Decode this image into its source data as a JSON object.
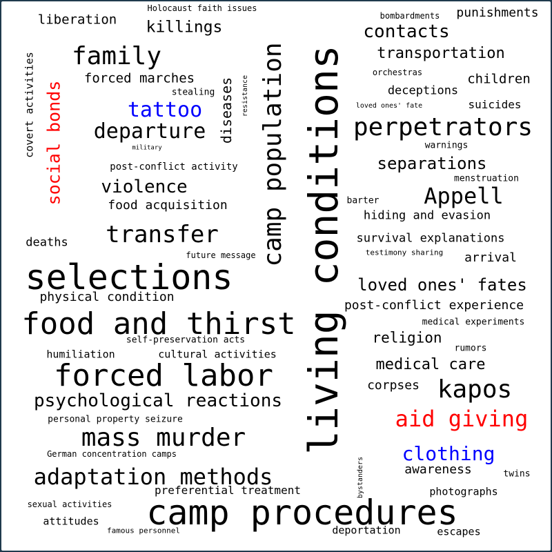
{
  "palette": {
    "default": "#000000",
    "red": "#ff0000",
    "blue": "#0000ff"
  },
  "words": [
    {
      "text": "living conditions",
      "color": "default"
    },
    {
      "text": "camp procedures",
      "color": "default"
    },
    {
      "text": "selections",
      "color": "default"
    },
    {
      "text": "food and thirst",
      "color": "default"
    },
    {
      "text": "forced labor",
      "color": "default"
    },
    {
      "text": "camp population",
      "color": "default"
    },
    {
      "text": "perpetrators",
      "color": "default"
    },
    {
      "text": "mass murder",
      "color": "default"
    },
    {
      "text": "adaptation methods",
      "color": "default"
    },
    {
      "text": "psychological reactions",
      "color": "default"
    },
    {
      "text": "family",
      "color": "default"
    },
    {
      "text": "departure",
      "color": "default"
    },
    {
      "text": "transfer",
      "color": "default"
    },
    {
      "text": "kapos",
      "color": "default"
    },
    {
      "text": "Appell",
      "color": "default"
    },
    {
      "text": "aid giving",
      "color": "red"
    },
    {
      "text": "social bonds",
      "color": "red"
    },
    {
      "text": "tattoo",
      "color": "blue"
    },
    {
      "text": "clothing",
      "color": "blue"
    },
    {
      "text": "loved ones' fates",
      "color": "default"
    },
    {
      "text": "violence",
      "color": "default"
    },
    {
      "text": "contacts",
      "color": "default"
    },
    {
      "text": "separations",
      "color": "default"
    },
    {
      "text": "transportation",
      "color": "default"
    },
    {
      "text": "killings",
      "color": "default"
    },
    {
      "text": "medical care",
      "color": "default"
    },
    {
      "text": "religion",
      "color": "default"
    },
    {
      "text": "punishments",
      "color": "default"
    },
    {
      "text": "children",
      "color": "default"
    },
    {
      "text": "liberation",
      "color": "default"
    },
    {
      "text": "forced marches",
      "color": "default"
    },
    {
      "text": "diseases",
      "color": "default"
    },
    {
      "text": "food acquisition",
      "color": "default"
    },
    {
      "text": "physical condition",
      "color": "default"
    },
    {
      "text": "post-conflict experience",
      "color": "default"
    },
    {
      "text": "corpses",
      "color": "default"
    },
    {
      "text": "awareness",
      "color": "default"
    },
    {
      "text": "deceptions",
      "color": "default"
    },
    {
      "text": "hiding and evasion",
      "color": "default"
    },
    {
      "text": "survival explanations",
      "color": "default"
    },
    {
      "text": "arrival",
      "color": "default"
    },
    {
      "text": "deaths",
      "color": "default"
    },
    {
      "text": "suicides",
      "color": "default"
    },
    {
      "text": "preferential treatment",
      "color": "default"
    },
    {
      "text": "cultural activities",
      "color": "default"
    },
    {
      "text": "post-conflict activity",
      "color": "default"
    },
    {
      "text": "humiliation",
      "color": "default"
    },
    {
      "text": "covert activities",
      "color": "default"
    },
    {
      "text": "photographs",
      "color": "default"
    },
    {
      "text": "deportation",
      "color": "default"
    },
    {
      "text": "escapes",
      "color": "default"
    },
    {
      "text": "attitudes",
      "color": "default"
    },
    {
      "text": "medical experiments",
      "color": "default"
    },
    {
      "text": "menstruation",
      "color": "default"
    },
    {
      "text": "warnings",
      "color": "default"
    },
    {
      "text": "rumors",
      "color": "default"
    },
    {
      "text": "twins",
      "color": "default"
    },
    {
      "text": "barter",
      "color": "default"
    },
    {
      "text": "stealing",
      "color": "default"
    },
    {
      "text": "self-preservation acts",
      "color": "default"
    },
    {
      "text": "personal property seizure",
      "color": "default"
    },
    {
      "text": "German concentration camps",
      "color": "default"
    },
    {
      "text": "Holocaust faith issues",
      "color": "default"
    },
    {
      "text": "bombardments",
      "color": "default"
    },
    {
      "text": "orchestras",
      "color": "default"
    },
    {
      "text": "future message",
      "color": "default"
    },
    {
      "text": "testimony sharing",
      "color": "default"
    },
    {
      "text": "loved ones' fate",
      "color": "default"
    },
    {
      "text": "sexual activities",
      "color": "default"
    },
    {
      "text": "famous personnel",
      "color": "default"
    },
    {
      "text": "resistance",
      "color": "default"
    },
    {
      "text": "bystanders",
      "color": "default"
    },
    {
      "text": "military",
      "color": "default"
    }
  ]
}
